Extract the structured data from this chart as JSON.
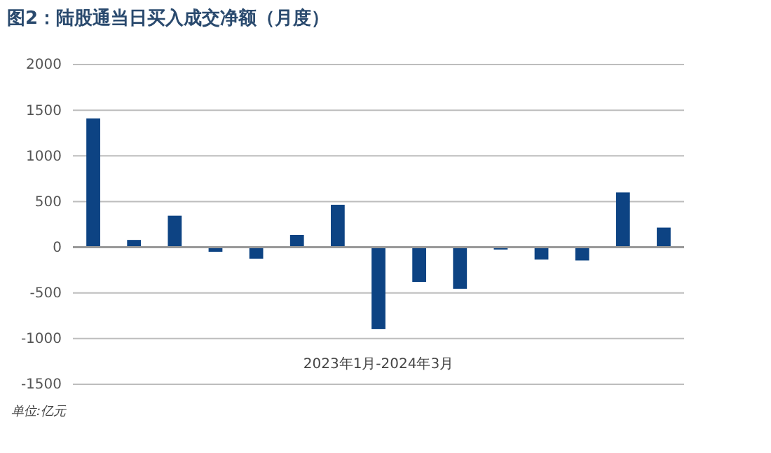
{
  "chart_data": {
    "type": "bar",
    "title": "图2：陆股通当日买入成交净额（月度）",
    "xlabel": "2023年1月-2024年3月",
    "categories": [
      null,
      null,
      null,
      null,
      null,
      null,
      null,
      null,
      null,
      null,
      null,
      null,
      null,
      null,
      null
    ],
    "values": [
      1410,
      80,
      345,
      -50,
      -125,
      135,
      465,
      -895,
      -380,
      -455,
      -25,
      -135,
      -145,
      600,
      215
    ],
    "color": "#0d4383",
    "ylim": [
      -1500,
      2000
    ],
    "yticks": [
      -1500,
      -1000,
      -500,
      0,
      500,
      1000,
      1500,
      2000
    ],
    "grid": "y",
    "annotations": [
      "单位:亿元"
    ]
  }
}
